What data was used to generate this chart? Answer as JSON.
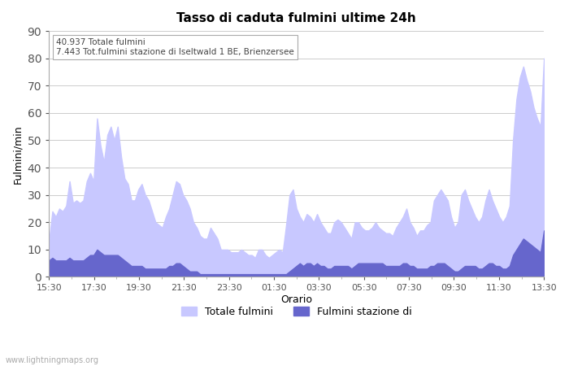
{
  "title": "Tasso di caduta fulmini ultime 24h",
  "xlabel": "Orario",
  "ylabel": "Fulmini/min",
  "ylim": [
    0,
    90
  ],
  "yticks": [
    0,
    10,
    20,
    30,
    40,
    50,
    60,
    70,
    80,
    90
  ],
  "annotation_line1": "40.937 Totale fulmini",
  "annotation_line2": "7.443 Tot.fulmini stazione di Iseltwald 1 BE, Brienzersee",
  "watermark": "www.lightningmaps.org",
  "legend_label1": "Totale fulmini",
  "legend_label2": "Fulmini stazione di",
  "color_total": "#c8c8ff",
  "color_station": "#6666cc",
  "bg_color": "#ffffff",
  "x_labels": [
    "15:30",
    "17:30",
    "19:30",
    "21:30",
    "23:30",
    "01:30",
    "03:30",
    "05:30",
    "07:30",
    "09:30",
    "11:30",
    "13:30"
  ],
  "total_values": [
    13,
    24,
    22,
    25,
    24,
    26,
    35,
    27,
    28,
    27,
    28,
    35,
    38,
    35,
    58,
    48,
    42,
    52,
    55,
    50,
    55,
    44,
    36,
    34,
    28,
    28,
    32,
    34,
    30,
    28,
    24,
    20,
    19,
    18,
    22,
    25,
    30,
    35,
    34,
    30,
    28,
    25,
    20,
    18,
    15,
    14,
    14,
    18,
    16,
    14,
    10,
    10,
    10,
    9,
    9,
    9,
    10,
    9,
    8,
    8,
    7,
    10,
    10,
    8,
    7,
    8,
    9,
    10,
    9,
    19,
    30,
    32,
    25,
    22,
    20,
    23,
    22,
    20,
    23,
    20,
    18,
    16,
    16,
    20,
    21,
    20,
    18,
    16,
    14,
    20,
    20,
    18,
    17,
    17,
    18,
    20,
    18,
    17,
    16,
    16,
    15,
    18,
    20,
    22,
    25,
    20,
    18,
    15,
    17,
    17,
    19,
    20,
    28,
    30,
    32,
    30,
    28,
    22,
    18,
    20,
    30,
    32,
    28,
    25,
    22,
    20,
    22,
    28,
    32,
    28,
    25,
    22,
    20,
    22,
    26,
    50,
    65,
    73,
    77,
    72,
    68,
    62,
    58,
    55,
    80
  ],
  "station_values": [
    6,
    7,
    6,
    6,
    6,
    6,
    7,
    6,
    6,
    6,
    6,
    7,
    8,
    8,
    10,
    9,
    8,
    8,
    8,
    8,
    8,
    7,
    6,
    5,
    4,
    4,
    4,
    4,
    3,
    3,
    3,
    3,
    3,
    3,
    3,
    4,
    4,
    5,
    5,
    4,
    3,
    2,
    2,
    2,
    1,
    1,
    1,
    1,
    1,
    1,
    1,
    1,
    1,
    1,
    1,
    1,
    1,
    1,
    1,
    1,
    1,
    1,
    1,
    1,
    1,
    1,
    1,
    1,
    1,
    1,
    2,
    3,
    4,
    5,
    4,
    5,
    5,
    4,
    5,
    4,
    4,
    3,
    3,
    4,
    4,
    4,
    4,
    4,
    3,
    4,
    5,
    5,
    5,
    5,
    5,
    5,
    5,
    5,
    4,
    4,
    4,
    4,
    4,
    5,
    5,
    4,
    4,
    3,
    3,
    3,
    3,
    4,
    4,
    5,
    5,
    5,
    4,
    3,
    2,
    2,
    3,
    4,
    4,
    4,
    4,
    3,
    3,
    4,
    5,
    5,
    4,
    4,
    3,
    3,
    4,
    8,
    10,
    12,
    14,
    13,
    12,
    11,
    10,
    9,
    17
  ]
}
